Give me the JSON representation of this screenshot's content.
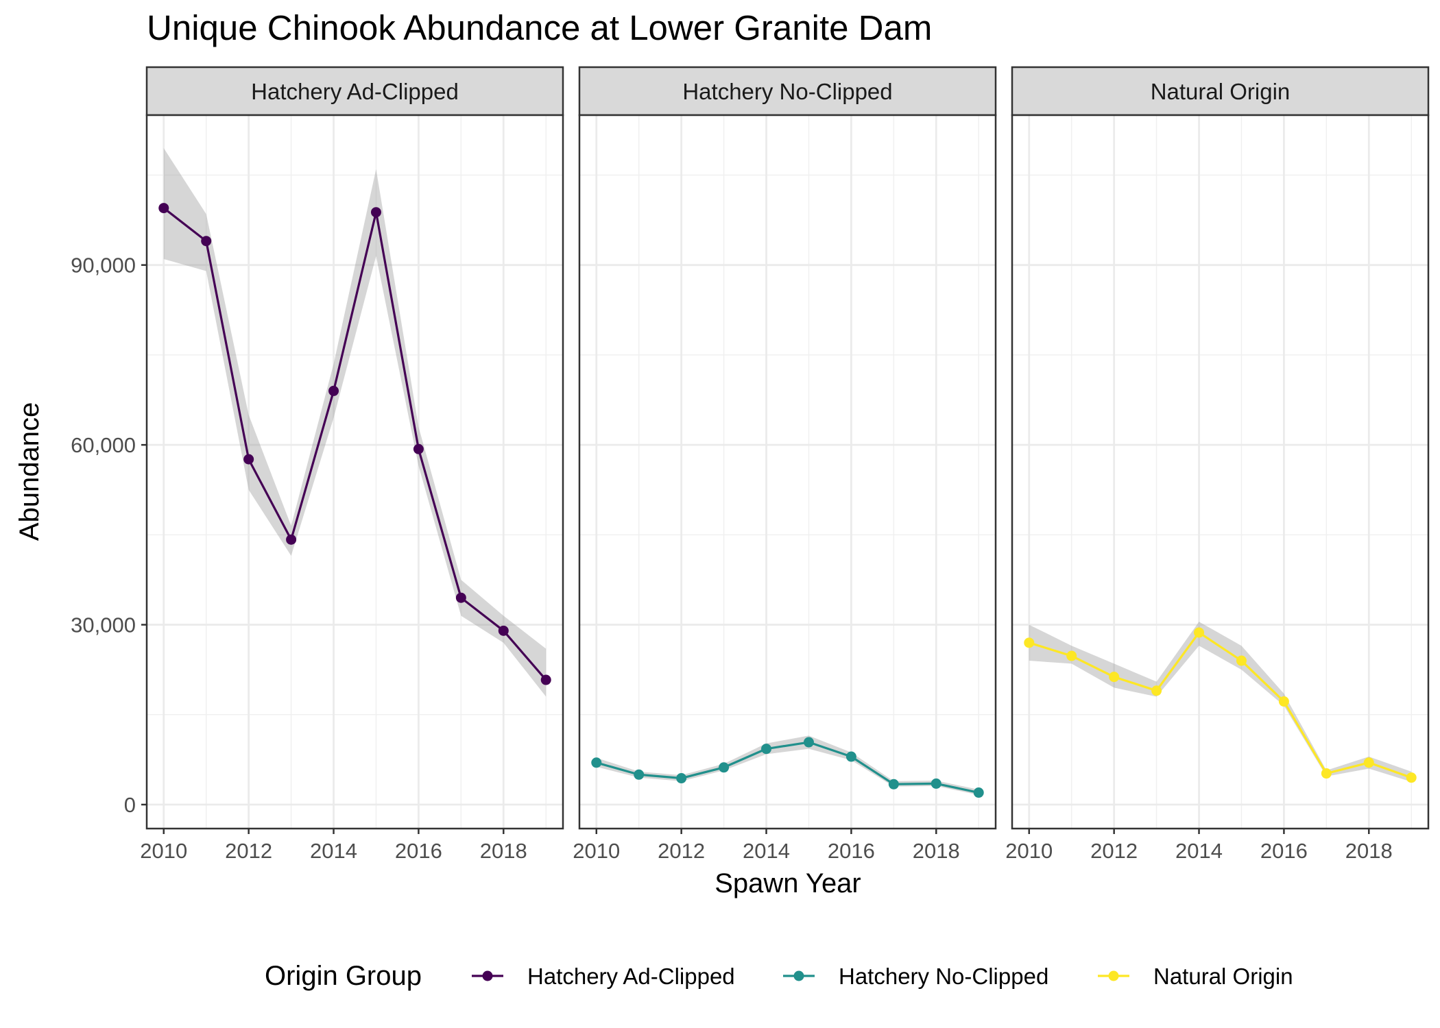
{
  "chart_data": {
    "type": "line",
    "title": "Unique Chinook Abundance at Lower Granite Dam",
    "xlabel": "Spawn Year",
    "ylabel": "Abundance",
    "x_ticks": [
      "2010",
      "2012",
      "2014",
      "2016",
      "2018"
    ],
    "y_ticks": [
      "0",
      "30,000",
      "60,000",
      "90,000"
    ],
    "xlim": [
      2009.6,
      2019.4
    ],
    "ylim": [
      -4000,
      115000
    ],
    "grid": true,
    "legend": {
      "title": "Origin Group",
      "position": "bottom",
      "entries": [
        "Hatchery Ad-Clipped",
        "Hatchery No-Clipped",
        "Natural Origin"
      ]
    },
    "x": [
      2010,
      2011,
      2012,
      2013,
      2014,
      2015,
      2016,
      2017,
      2018,
      2019
    ],
    "series": [
      {
        "name": "Hatchery Ad-Clipped",
        "color": "#440154",
        "values": [
          99500,
          94000,
          57600,
          44200,
          69000,
          98800,
          59300,
          34500,
          29000,
          20800
        ],
        "lower": [
          91000,
          89000,
          52500,
          41500,
          64500,
          91500,
          56500,
          31500,
          27000,
          18000
        ],
        "upper": [
          109500,
          98500,
          65000,
          46500,
          73500,
          106000,
          63000,
          37500,
          31500,
          26000
        ]
      },
      {
        "name": "Hatchery No-Clipped",
        "color": "#21908C",
        "values": [
          7000,
          5000,
          4400,
          6200,
          9300,
          10400,
          8000,
          3400,
          3500,
          2000
        ],
        "lower": [
          6300,
          4500,
          3900,
          5700,
          8400,
          9300,
          7400,
          3000,
          3100,
          1600
        ],
        "upper": [
          7800,
          5500,
          4900,
          6800,
          10200,
          11500,
          8700,
          3900,
          4000,
          2500
        ]
      },
      {
        "name": "Natural Origin",
        "color": "#FDE725",
        "values": [
          27000,
          24800,
          21300,
          19000,
          28700,
          24000,
          17200,
          5200,
          7000,
          4500
        ],
        "lower": [
          24000,
          23500,
          19500,
          18000,
          26500,
          22500,
          16500,
          4700,
          6000,
          3800
        ],
        "upper": [
          30000,
          26500,
          23500,
          20500,
          30500,
          26500,
          18500,
          5700,
          8000,
          5500
        ]
      }
    ]
  }
}
